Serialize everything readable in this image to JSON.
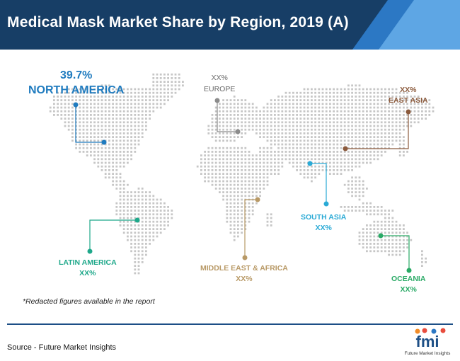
{
  "header": {
    "title": "Medical Mask Market Share by Region, 2019 (A)"
  },
  "colors": {
    "header_bg": "#173e66",
    "header_accent_1": "#2c78c4",
    "header_accent_2": "#5ea6e4",
    "map_dots": "#c6c6c6",
    "north_america": "#1f7bbf",
    "europe": "#8c8c8c",
    "east_asia": "#8b5a3c",
    "south_asia": "#2aaad6",
    "latin_america": "#1ea88a",
    "middle_east_africa": "#b89966",
    "oceania": "#2aaa66"
  },
  "regions": {
    "north_america": {
      "value": "39.7%",
      "name": "NORTH AMERICA"
    },
    "europe": {
      "value": "XX%",
      "name": "EUROPE"
    },
    "east_asia": {
      "value": "XX%",
      "name": "EAST ASIA"
    },
    "south_asia": {
      "name": "SOUTH ASIA",
      "value": "XX%"
    },
    "latin_america": {
      "name": "LATIN AMERICA",
      "value": "XX%"
    },
    "middle_east_africa": {
      "name": "MIDDLE EAST & AFRICA",
      "value": "XX%"
    },
    "oceania": {
      "name": "OCEANIA",
      "value": "XX%"
    }
  },
  "footnote": "*Redacted figures available in the report",
  "source": "Source - Future Market Insights",
  "logo": {
    "mark": "fmi",
    "text": "Future Market Insights"
  }
}
